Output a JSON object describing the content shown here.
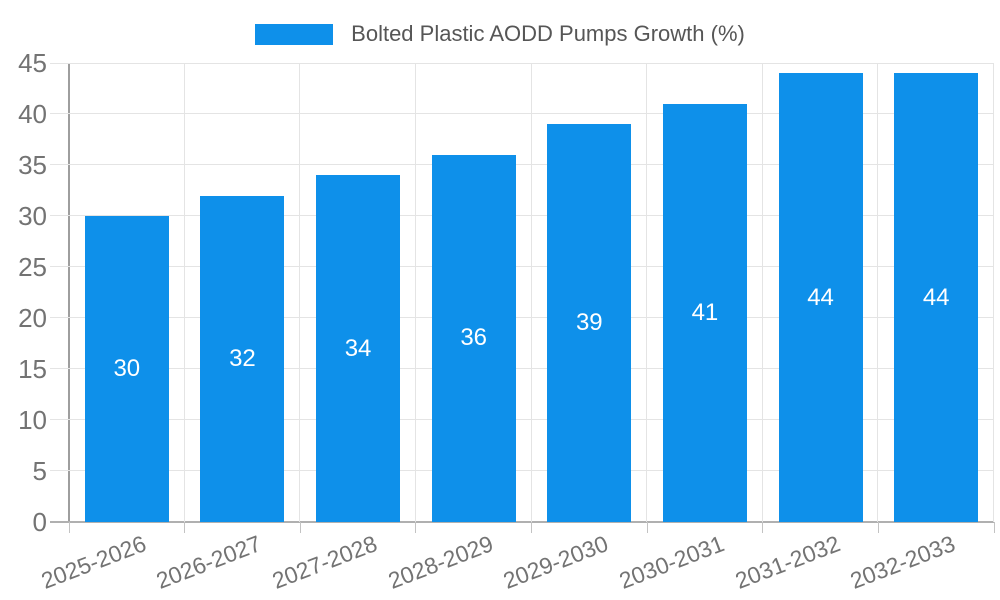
{
  "legend": {
    "label": "Bolted Plastic AODD Pumps Growth (%)",
    "swatch_color": "#0e90ea"
  },
  "chart_data": {
    "type": "bar",
    "title": "Bolted Plastic AODD Pumps Growth (%)",
    "categories": [
      "2025-2026",
      "2026-2027",
      "2027-2028",
      "2028-2029",
      "2029-2030",
      "2030-2031",
      "2031-2032",
      "2032-2033"
    ],
    "values": [
      30,
      32,
      34,
      36,
      39,
      41,
      44,
      44
    ],
    "xlabel": "",
    "ylabel": "",
    "ylim": [
      0,
      45
    ],
    "ytick_step": 5,
    "yticks": [
      0,
      5,
      10,
      15,
      20,
      25,
      30,
      35,
      40,
      45
    ],
    "grid": true,
    "legend_position": "top",
    "bar_color": "#0e90ea",
    "value_label_color": "#ffffff",
    "axis_text_color": "#737373",
    "legend_text_color": "#565656",
    "gridline_color": "#e4e4e4"
  }
}
